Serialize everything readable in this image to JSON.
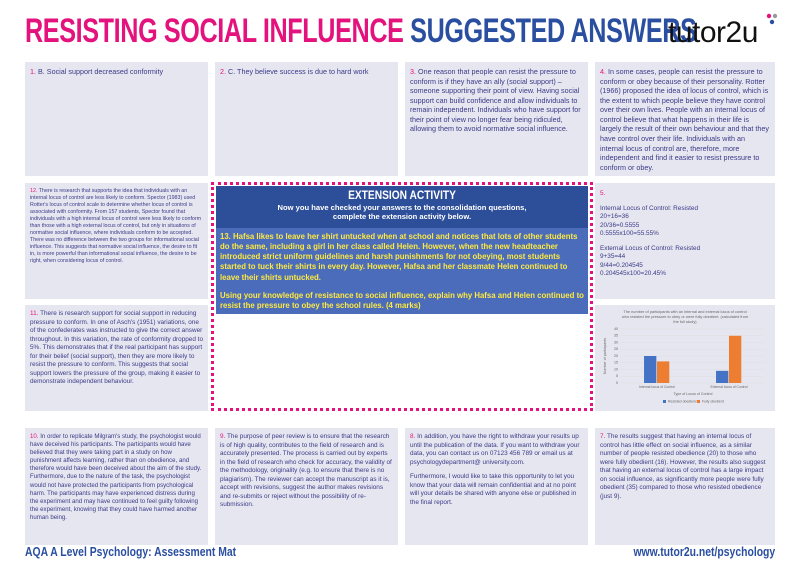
{
  "header": {
    "title_part1": "RESISTING SOCIAL INFLUENCE",
    "title_part2": "SUGGESTED ANSWERS",
    "logo": "tutor2u"
  },
  "answers": {
    "q1": {
      "number": "1.",
      "paragraphs": [
        "B. Social support decreased conformity"
      ]
    },
    "q2": {
      "number": "2.",
      "paragraphs": [
        "C. They believe success is due to hard work"
      ]
    },
    "q3": {
      "number": "3.",
      "paragraphs": [
        "One reason that people can resist the pressure to conform is if they have an ally (social support) – someone supporting their point of view. Having social support can build confidence and allow individuals to remain independent. Individuals who have support for their point of view no longer fear being ridiculed, allowing them to avoid normative social influence."
      ]
    },
    "q4": {
      "number": "4.",
      "paragraphs": [
        "In some cases, people can resist the pressure to conform or obey because of their personality. Rotter (1966) proposed the idea of locus of control, which is the extent to which people believe they have control over their own lives. People with an internal locus of control believe that what happens in their life is largely the result of their own behaviour and that they have control over their life. Individuals with an internal locus of control are, therefore, more independent and find it easier to resist pressure to conform or obey."
      ]
    },
    "q12": {
      "number": "12.",
      "paragraphs": [
        "There is research that supports the idea that individuals with an internal locus of control are less likely to conform. Spector (1983) used Rotter's locus of control scale to determine whether locus of control is associated with conformity. From 157 students, Spector found that individuals with a high internal locus of control were less likely to conform than those with a high external locus of control, but only in situations of normative social influence, where individuals conform to be accepted. There was no difference between the two groups for informational social influence. This suggests that normative social influence, the desire to fit in, is more powerful than informational social influence, the desire to be right, when considering locus of control."
      ]
    },
    "q5": {
      "number": "5.",
      "paragraphs": [
        [
          "Internal Locus of Control: Resisted",
          "20+16=36",
          "20/36=0.5555",
          "0.5555x100=55.55%"
        ],
        [
          "External Locus of Control: Resisted",
          "9+35=44",
          "9/44=0.204545",
          "0.204545x100=20.45%"
        ]
      ]
    },
    "q11": {
      "number": "11.",
      "paragraphs": [
        "There is research support for social support in reducing pressure to conform. In one of Asch's (1951) variations, one of the confederates was instructed to give the correct answer throughout. In this variation, the rate of conformity dropped to 5%. This demonstrates that if the real participant has support for their belief (social support), then they are more likely to resist the pressure to conform. This suggests that social support lowers the pressure of the group, making it easier to demonstrate independent behaviour."
      ]
    },
    "q10": {
      "number": "10.",
      "paragraphs": [
        "In order to replicate Milgram's study, the psychologist would have deceived his participants. The participants would have believed that they were taking part in a study on how punishment affects learning, rather than on obedience, and therefore would have been deceived about the aim of the study. Furthermore, due to the nature of the task, the psychologist would not have protected the participants from psychological harm. The participants may have experienced distress during the experiment and may have continued to feel guilty following the experiment, knowing that they could have harmed another human being."
      ]
    },
    "q9": {
      "number": "9.",
      "paragraphs": [
        "The purpose of peer review is to ensure that the research is of high quality, contributes to the field of research and is accurately presented. The process is carried out by experts in the field of research who check for accuracy, the validity of the methodology, originality (e.g. to ensure that there is no plagiarism). The reviewer can accept the manuscript as it is, accept with revisions, suggest the author makes revisions and re-submits or reject without the possibility of re-submission."
      ]
    },
    "q8": {
      "number": "8.",
      "paragraphs": [
        "In addition, you have the right to withdraw your results up until the publication of the data. If you want to withdraw your data, you can contact us on 07123 456 789 or email us at psychologydepartment@ university.com.",
        "Furthermore, I would like to take this opportunity to let you know that your data will remain confidential and at no point will your details be shared with anyone else or published in the final report."
      ]
    },
    "q7": {
      "number": "7.",
      "paragraphs": [
        "The results suggest that having an internal locus of control has little effect on social influence, as a similar number of people resisted obedience (20) to those who were fully obedient (16). However, the results also suggest that having an external locus of control has a large impact on social influence, as significantly more people were fully obedient (35) compared to those who resisted obedience (just 9)."
      ]
    }
  },
  "extension": {
    "heading": "EXTENSION ACTIVITY",
    "instructions": "Now you have checked your answers to the consolidation questions, complete the extension activity below.",
    "question_number": "13.",
    "question": "Hafsa likes to leave her shirt untucked when at school and notices that lots of other students do the same, including a girl in her class called Helen. However, when the new headteacher introduced strict uniform guidelines and harsh punishments for not obeying, most students started to tuck their shirts in every day. However, Hafsa and her classmate Helen continued to leave their shirts untucked.",
    "task": "Using your knowledge of resistance to social influence, explain why Hafsa and Helen continued to resist the pressure to obey the school rules. (4 marks)"
  },
  "chart_data": {
    "type": "bar",
    "title": "The number of participants with an internal and external locus of control who resisted the pressure to obey or were fully obedient. (calculated from the full study)",
    "categories": [
      "Internal locus of Control",
      "External locus of Control"
    ],
    "series": [
      {
        "name": "Resisted obedience",
        "color": "#4472c4",
        "values": [
          20,
          9
        ]
      },
      {
        "name": "Fully obedient",
        "color": "#ed7d31",
        "values": [
          16,
          35
        ]
      }
    ],
    "x_label": "Type of Locus of Control",
    "y_label": "Number of participants",
    "ylim": [
      0,
      40
    ],
    "yticks": [
      0,
      5,
      10,
      15,
      20,
      25,
      30,
      35,
      40
    ],
    "grid": true,
    "legend": "bottom"
  },
  "footer": {
    "left": "AQA A Level Psychology: Assessment Mat",
    "right": "www.tutor2u.net/psychology"
  }
}
